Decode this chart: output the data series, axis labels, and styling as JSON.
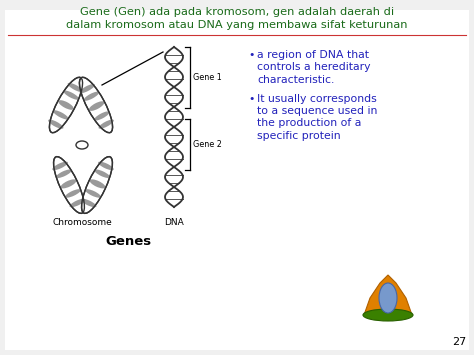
{
  "bg_color": "#f0f0f0",
  "title_line1": "Gene (Gen) ada pada kromosom, gen adalah daerah di",
  "title_line2": "dalam kromosom atau DNA yang membawa sifat keturunan",
  "title_color": "#1a6b1a",
  "separator_color": "#cc3333",
  "bullet1": "a region of DNA that\ncontrols a hereditary\ncharacteristic.",
  "bullet2": "It usually corresponds\nto a sequence used in\nthe production of a\nspecific protein",
  "bullet_color": "#2222bb",
  "label_chromosome": "Chromosome",
  "label_dna": "DNA",
  "label_gene1": "Gene 1",
  "label_gene2": "Gene 2",
  "label_genes": "Genes",
  "label_color": "#000000",
  "page_number": "27"
}
